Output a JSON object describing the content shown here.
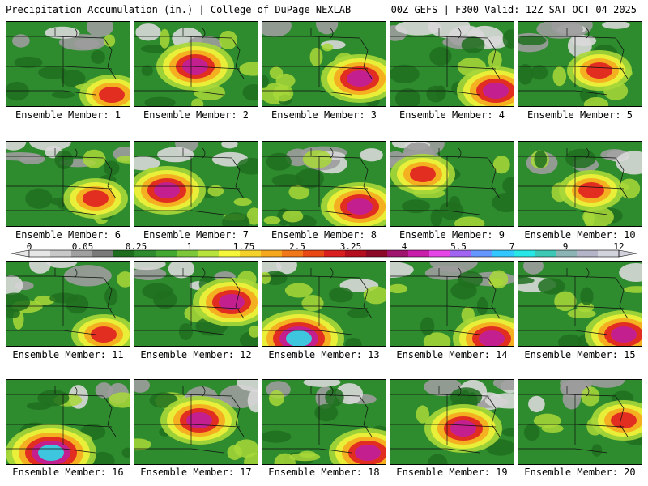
{
  "header": {
    "title": "Precipitation Accumulation (in.) | College of DuPage NEXLAB",
    "run_info": "00Z GEFS | F300 Valid: 12Z SAT OCT 04 2025"
  },
  "panels": [
    {
      "label": "Ensemble Member: 1"
    },
    {
      "label": "Ensemble Member: 2"
    },
    {
      "label": "Ensemble Member: 3"
    },
    {
      "label": "Ensemble Member: 4"
    },
    {
      "label": "Ensemble Member: 5"
    },
    {
      "label": "Ensemble Member: 6"
    },
    {
      "label": "Ensemble Member: 7"
    },
    {
      "label": "Ensemble Member: 8"
    },
    {
      "label": "Ensemble Member: 9"
    },
    {
      "label": "Ensemble Member: 10"
    },
    {
      "label": "Ensemble Member: 11"
    },
    {
      "label": "Ensemble Member: 12"
    },
    {
      "label": "Ensemble Member: 13"
    },
    {
      "label": "Ensemble Member: 14"
    },
    {
      "label": "Ensemble Member: 15"
    },
    {
      "label": "Ensemble Member: 16"
    },
    {
      "label": "Ensemble Member: 17"
    },
    {
      "label": "Ensemble Member: 18"
    },
    {
      "label": "Ensemble Member: 19"
    },
    {
      "label": "Ensemble Member: 20"
    }
  ],
  "legend": {
    "ticks": [
      "0",
      "0.05",
      "0.25",
      "1",
      "1.75",
      "2.5",
      "3.25",
      "4",
      "5.5",
      "7",
      "9",
      "12"
    ],
    "colors": [
      "#e6e6e6",
      "#c8c8c8",
      "#a0a0a0",
      "#7a7a7a",
      "#1f6e1f",
      "#2e8b2e",
      "#43a832",
      "#7cc83a",
      "#b8e23c",
      "#f5f53a",
      "#f5d22a",
      "#f5a81e",
      "#f07818",
      "#e84814",
      "#d81e1e",
      "#b40f1e",
      "#8c0a28",
      "#a0146e",
      "#c81eaa",
      "#e646e6",
      "#a064f0",
      "#6496ff",
      "#32c8ff",
      "#28e6e6",
      "#3cc8b4",
      "#8cb4b4",
      "#b4b4c8",
      "#d2d2dc"
    ]
  },
  "colors": {
    "gray_light": "#d8d8d8",
    "gray_mid": "#9c9c9c",
    "green_dark": "#1f6e1f",
    "green": "#2e8b2e",
    "yellow_green": "#a8d838",
    "yellow": "#f2f23a",
    "orange": "#f5a81e",
    "red": "#e02020",
    "magenta": "#c01e9a",
    "cyan": "#30d8e8"
  }
}
